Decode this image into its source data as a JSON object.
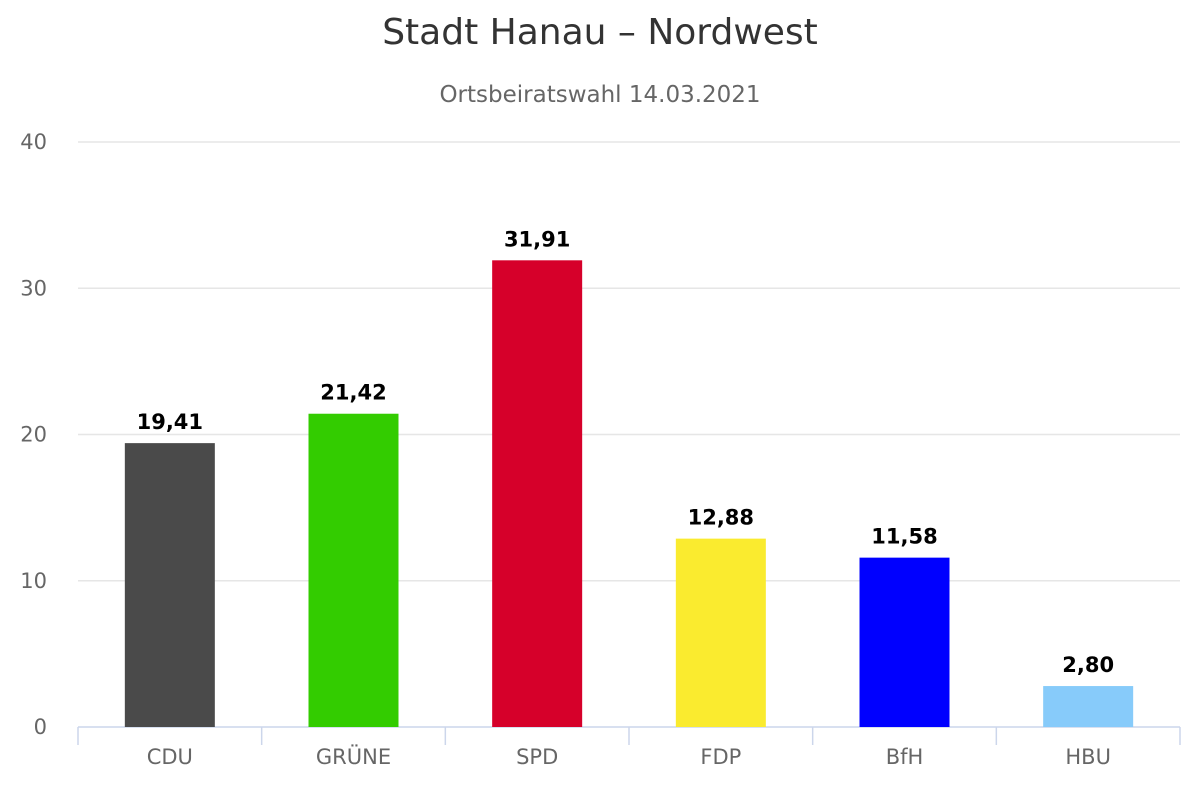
{
  "chart_data": {
    "type": "bar",
    "title": "Stadt Hanau – Nordwest",
    "subtitle": "Ortsbeiratswahl 14.03.2021",
    "xlabel": "",
    "ylabel": "",
    "ylim": [
      0,
      40
    ],
    "yticks": [
      "0",
      "10",
      "20",
      "30",
      "40"
    ],
    "grid": true,
    "legend": "none",
    "categories": [
      "CDU",
      "GRÜNE",
      "SPD",
      "FDP",
      "BfH",
      "HBU"
    ],
    "values": [
      19.41,
      21.42,
      31.91,
      12.88,
      11.58,
      2.8
    ],
    "value_labels": [
      "19,41",
      "21,42",
      "31,91",
      "12,88",
      "11,58",
      "2,80"
    ],
    "colors": [
      "#4a4a4a",
      "#33cc00",
      "#d6002a",
      "#faeb2f",
      "#0000ff",
      "#87cbfa"
    ]
  }
}
